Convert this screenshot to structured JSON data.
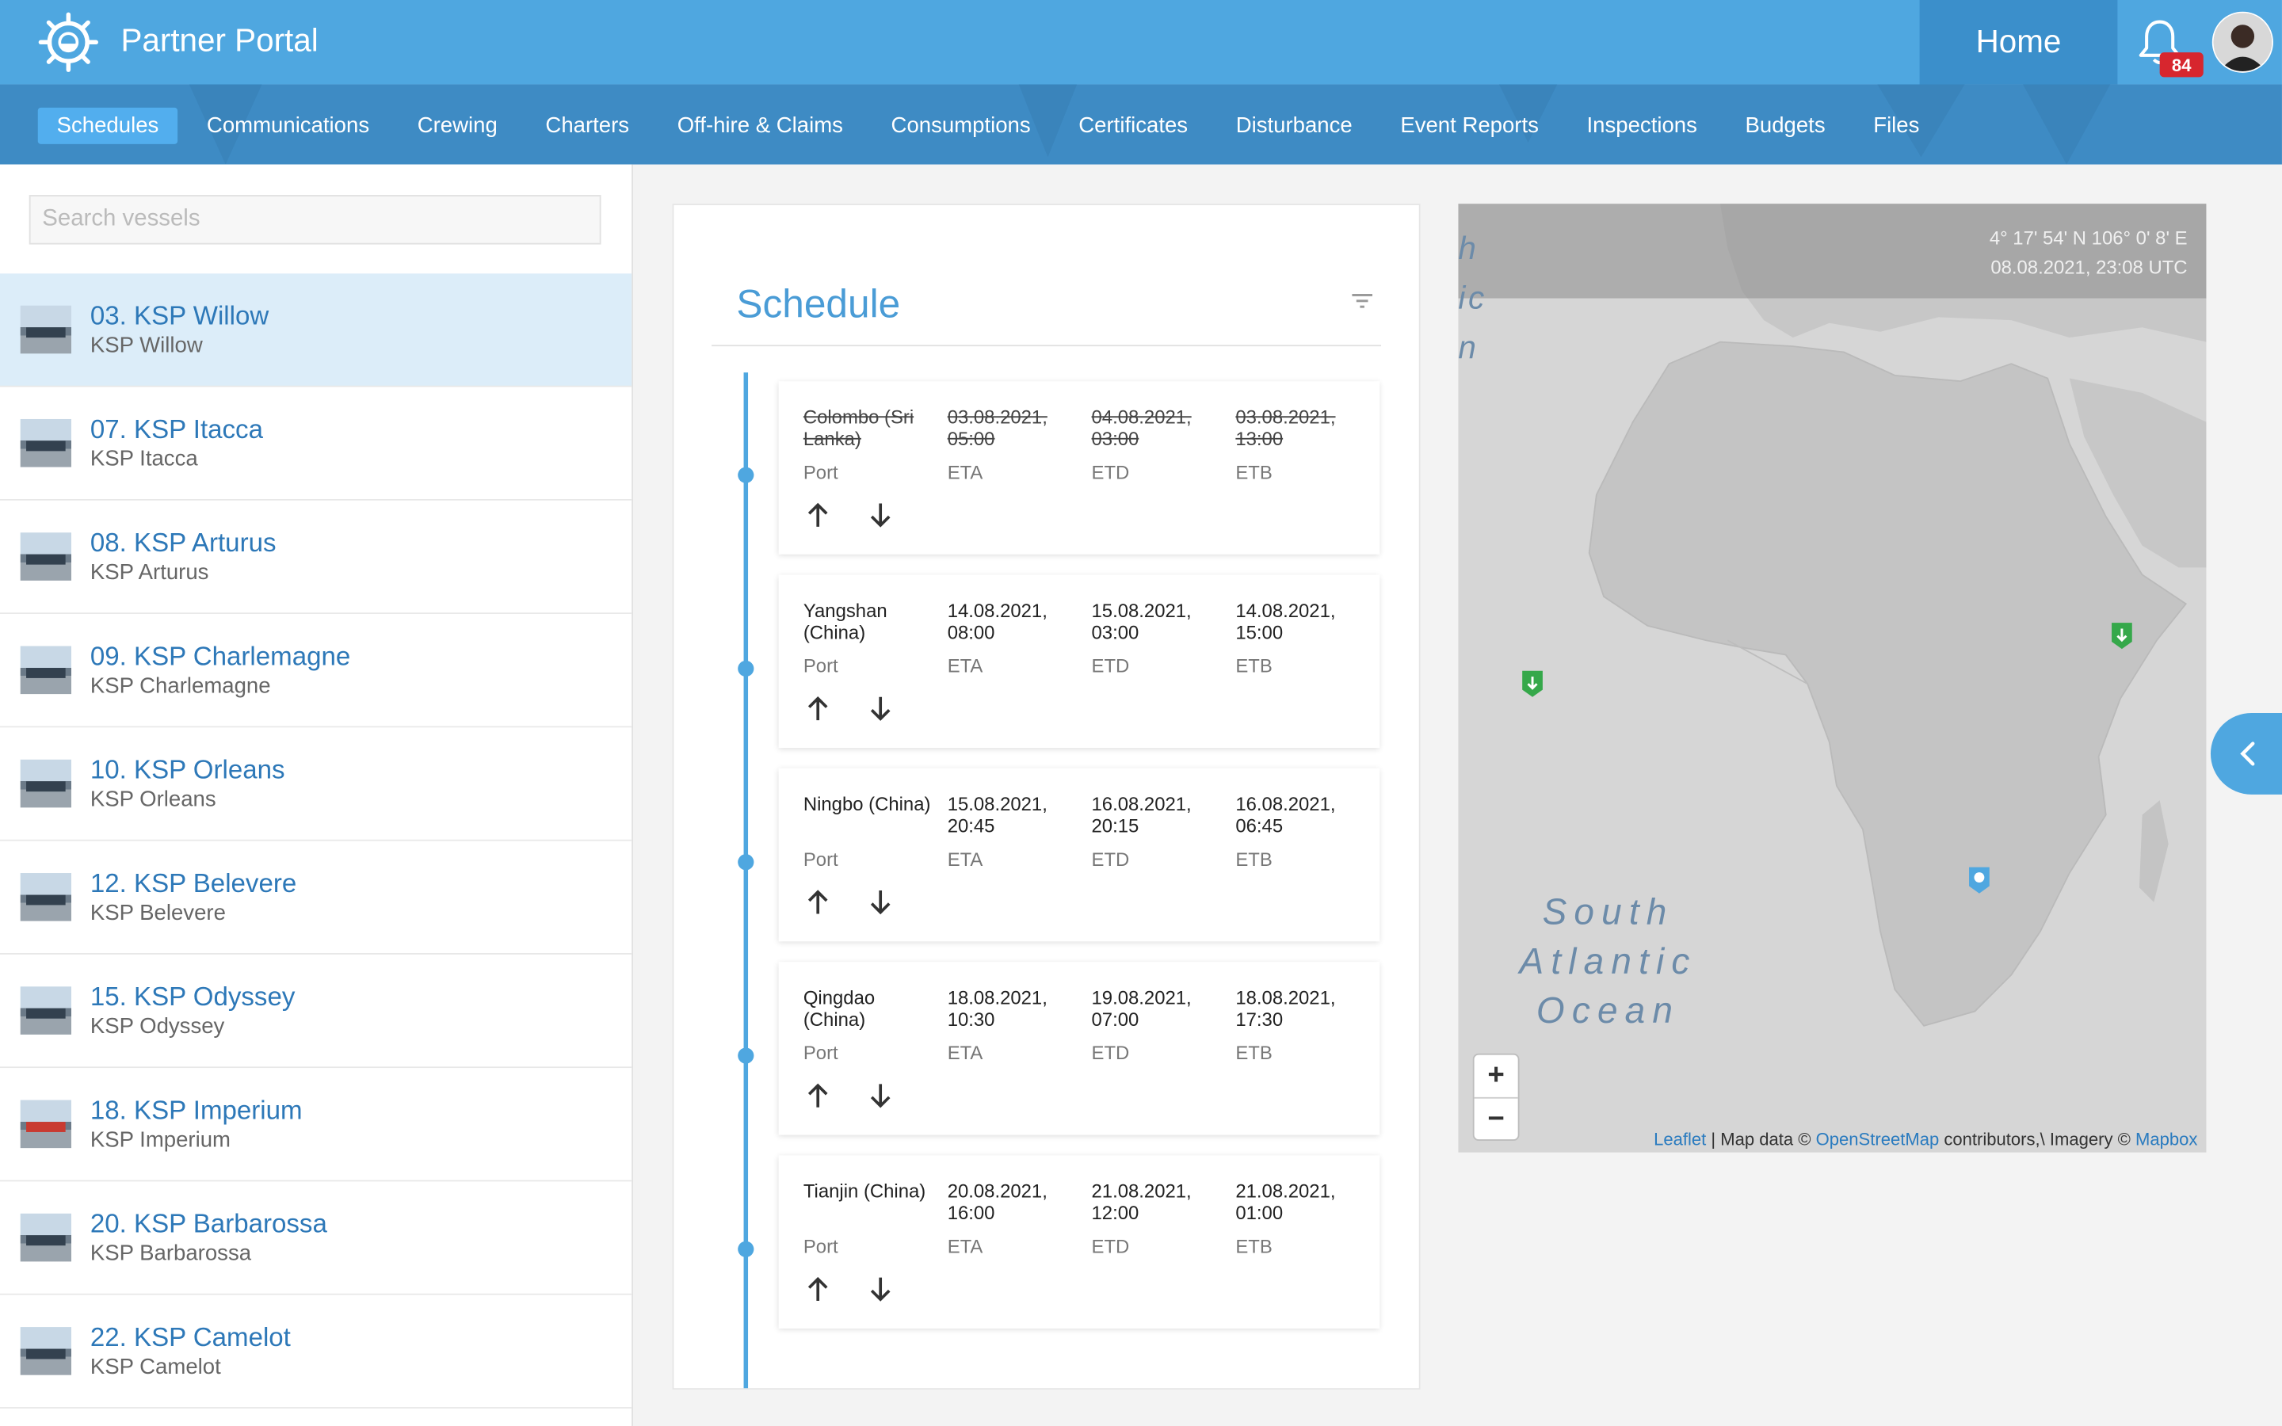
{
  "app": {
    "title": "Partner Portal",
    "home_label": "Home",
    "notification_count": "84",
    "accent_color": "#4fa7e0"
  },
  "nav": {
    "items": [
      {
        "label": "Schedules",
        "active": true
      },
      {
        "label": "Communications"
      },
      {
        "label": "Crewing"
      },
      {
        "label": "Charters"
      },
      {
        "label": "Off-hire & Claims"
      },
      {
        "label": "Consumptions"
      },
      {
        "label": "Certificates"
      },
      {
        "label": "Disturbance"
      },
      {
        "label": "Event Reports"
      },
      {
        "label": "Inspections"
      },
      {
        "label": "Budgets"
      },
      {
        "label": "Files"
      }
    ]
  },
  "sidebar": {
    "search_placeholder": "Search vessels",
    "vessels": [
      {
        "title": "03. KSP Willow",
        "subtitle": "KSP Willow",
        "selected": true
      },
      {
        "title": "07. KSP Itacca",
        "subtitle": "KSP Itacca"
      },
      {
        "title": "08. KSP Arturus",
        "subtitle": "KSP Arturus"
      },
      {
        "title": "09. KSP Charlemagne",
        "subtitle": "KSP Charlemagne"
      },
      {
        "title": "10. KSP Orleans",
        "subtitle": "KSP Orleans"
      },
      {
        "title": "12. KSP Belevere",
        "subtitle": "KSP Belevere"
      },
      {
        "title": "15. KSP Odyssey",
        "subtitle": "KSP Odyssey"
      },
      {
        "title": "18. KSP Imperium",
        "subtitle": "KSP Imperium"
      },
      {
        "title": "20. KSP Barbarossa",
        "subtitle": "KSP Barbarossa"
      },
      {
        "title": "22. KSP Camelot",
        "subtitle": "KSP Camelot"
      }
    ]
  },
  "schedule": {
    "title": "Schedule",
    "labels": {
      "port": "Port",
      "eta": "ETA",
      "etd": "ETD",
      "etb": "ETB"
    },
    "entries": [
      {
        "port": "Colombo (Sri Lanka)",
        "eta": "03.08.2021, 05:00",
        "etd": "04.08.2021, 03:00",
        "etb": "03.08.2021, 13:00",
        "struck": true
      },
      {
        "port": "Yangshan (China)",
        "eta": "14.08.2021, 08:00",
        "etd": "15.08.2021, 03:00",
        "etb": "14.08.2021, 15:00"
      },
      {
        "port": "Ningbo (China)",
        "eta": "15.08.2021, 20:45",
        "etd": "16.08.2021, 20:15",
        "etb": "16.08.2021, 06:45"
      },
      {
        "port": "Qingdao (China)",
        "eta": "18.08.2021, 10:30",
        "etd": "19.08.2021, 07:00",
        "etb": "18.08.2021, 17:30"
      },
      {
        "port": "Tianjin (China)",
        "eta": "20.08.2021, 16:00",
        "etd": "21.08.2021, 12:00",
        "etb": "21.08.2021, 01:00"
      }
    ]
  },
  "map": {
    "coords": "4° 17' 54' N 106° 0' 8' E",
    "time": "08.08.2021, 23:08 UTC",
    "ocean_line1": "South",
    "ocean_line2": "Atlantic",
    "ocean_line3": "Ocean",
    "edge_text": "h\nic\nn",
    "zoom_in": "+",
    "zoom_out": "−",
    "attribution": {
      "leaflet": "Leaflet",
      "sep1": " | Map data © ",
      "osm": "OpenStreetMap",
      "mid": " contributors,\\ Imagery © ",
      "mapbox": "Mapbox"
    }
  }
}
